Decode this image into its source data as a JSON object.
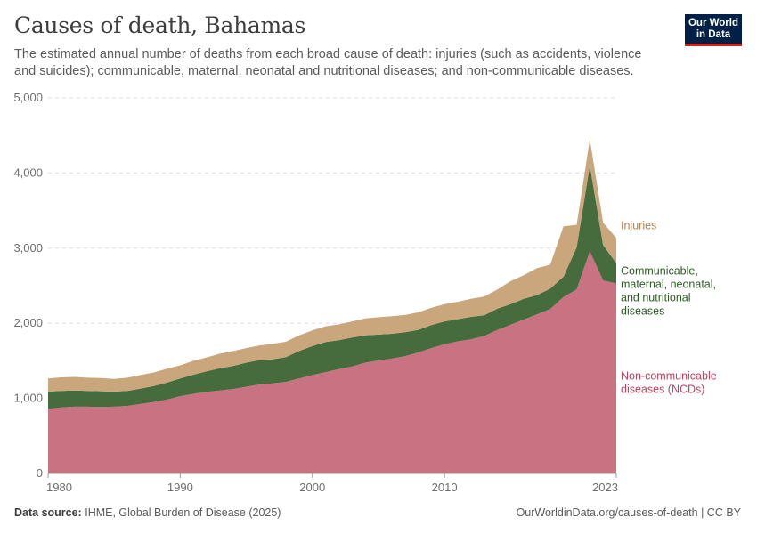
{
  "header": {
    "title": "Causes of death, Bahamas",
    "subtitle": "The estimated annual number of deaths from each broad cause of death: injuries (such as accidents, violence and suicides); communicable, maternal, neonatal and nutritional diseases; and non-communicable diseases.",
    "logo_line1": "Our World",
    "logo_line2": "in Data"
  },
  "footer": {
    "source_label": "Data source:",
    "source_text": "IHME, Global Burden of Disease (2025)",
    "url": "OurWorldinData.org/causes-of-death | CC BY"
  },
  "chart_data": {
    "type": "area",
    "stacked": true,
    "title": "Causes of death, Bahamas",
    "xlabel": "",
    "ylabel": "",
    "xlim": [
      1980,
      2023
    ],
    "ylim": [
      0,
      5000
    ],
    "yticks": [
      0,
      1000,
      2000,
      3000,
      4000,
      5000
    ],
    "ytick_labels": [
      "0",
      "1,000",
      "2,000",
      "3,000",
      "4,000",
      "5,000"
    ],
    "xticks": [
      1980,
      1990,
      2000,
      2010,
      2023
    ],
    "xtick_labels": [
      "1980",
      "1990",
      "2000",
      "2010",
      "2023"
    ],
    "grid": "horizontal-dashed",
    "legend": "inline-right",
    "x": [
      1980,
      1981,
      1982,
      1983,
      1984,
      1985,
      1986,
      1987,
      1988,
      1989,
      1990,
      1991,
      1992,
      1993,
      1994,
      1995,
      1996,
      1997,
      1998,
      1999,
      2000,
      2001,
      2002,
      2003,
      2004,
      2005,
      2006,
      2007,
      2008,
      2009,
      2010,
      2011,
      2012,
      2013,
      2014,
      2015,
      2016,
      2017,
      2018,
      2019,
      2020,
      2021,
      2022,
      2023
    ],
    "series": [
      {
        "name": "Non-communicable diseases (NCDs)",
        "label_lines": [
          "Non-communicable",
          "diseases (NCDs)"
        ],
        "color": "#c97282",
        "label_color": "#c2405e",
        "values": [
          860,
          880,
          890,
          890,
          885,
          890,
          900,
          925,
          950,
          985,
          1030,
          1060,
          1085,
          1105,
          1125,
          1155,
          1185,
          1200,
          1220,
          1265,
          1310,
          1350,
          1390,
          1425,
          1475,
          1505,
          1530,
          1560,
          1610,
          1670,
          1720,
          1760,
          1785,
          1830,
          1910,
          1980,
          2050,
          2120,
          2190,
          2350,
          2450,
          2960,
          2570,
          2530
        ]
      },
      {
        "name": "Communicable, maternal, neonatal, and nutritional diseases",
        "label_lines": [
          "Communicable,",
          "maternal, neonatal,",
          "and nutritional",
          "diseases"
        ],
        "color": "#466b3c",
        "label_color": "#2f5a26",
        "values": [
          230,
          220,
          215,
          210,
          210,
          200,
          200,
          205,
          215,
          225,
          235,
          255,
          275,
          295,
          305,
          320,
          325,
          320,
          330,
          365,
          385,
          400,
          385,
          385,
          365,
          345,
          330,
          320,
          300,
          305,
          305,
          295,
          300,
          275,
          285,
          275,
          275,
          255,
          270,
          270,
          560,
          1140,
          470,
          270
        ]
      },
      {
        "name": "Injuries",
        "label_lines": [
          "Injuries"
        ],
        "color": "#c9a67c",
        "label_color": "#b28451",
        "values": [
          175,
          180,
          180,
          175,
          175,
          170,
          175,
          180,
          180,
          185,
          175,
          185,
          185,
          195,
          200,
          195,
          195,
          205,
          205,
          210,
          210,
          210,
          210,
          215,
          225,
          230,
          235,
          230,
          235,
          230,
          230,
          230,
          240,
          250,
          255,
          305,
          315,
          360,
          320,
          670,
          300,
          350,
          300,
          335
        ]
      }
    ]
  }
}
